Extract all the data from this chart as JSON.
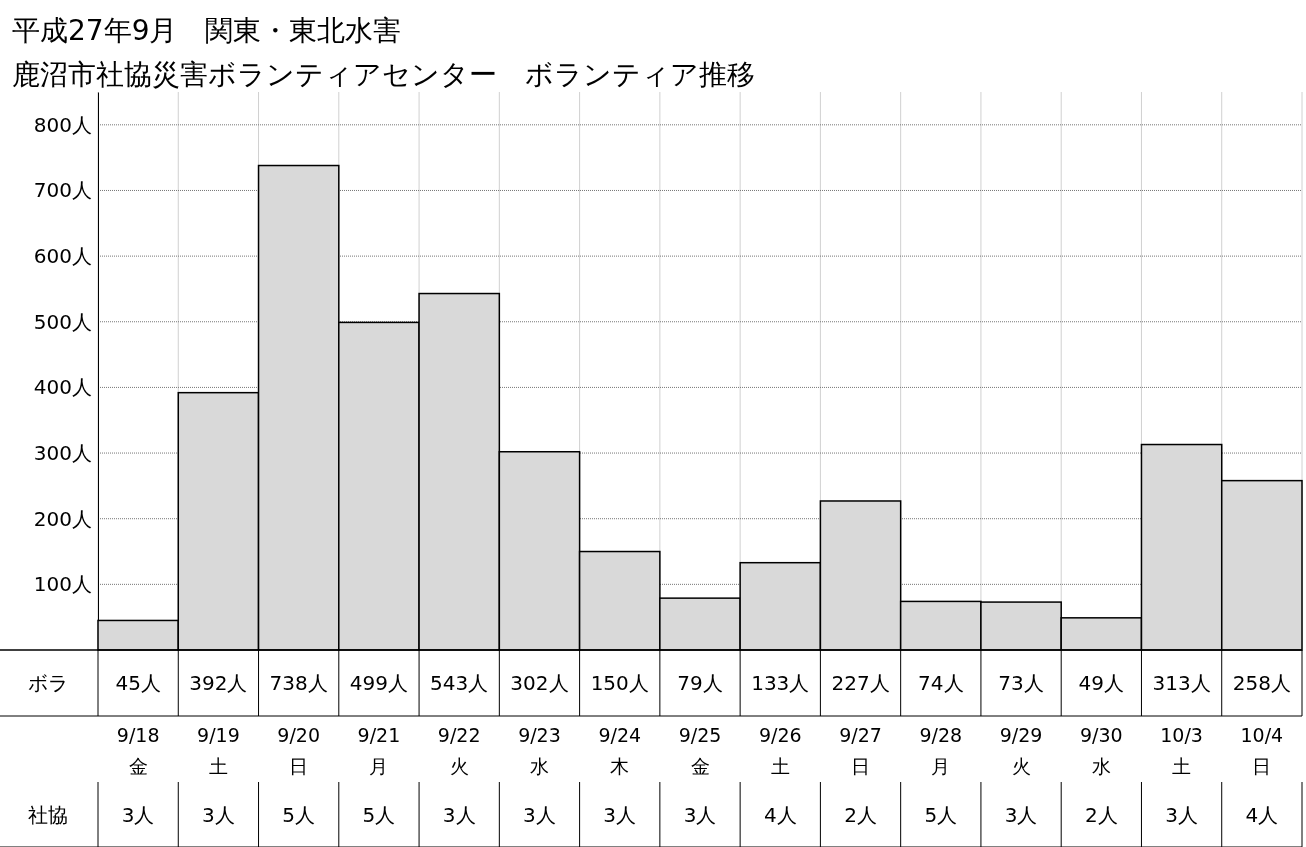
{
  "chart_data": {
    "type": "bar",
    "title": "平成27年9月　関東・東北水害",
    "subtitle": "鹿沼市社協災害ボランティアセンター　ボランティア推移",
    "categories": [
      "9/18\n金",
      "9/19\n土",
      "9/20\n日",
      "9/21\n月",
      "9/22\n火",
      "9/23\n水",
      "9/24\n木",
      "9/25\n金",
      "9/26\n土",
      "9/27\n日",
      "9/28\n月",
      "9/29\n火",
      "9/30\n水",
      "10/3\n土",
      "10/4\n日"
    ],
    "series": [
      {
        "name": "ボラ",
        "color": "#d9d9d9",
        "values": [
          45,
          392,
          738,
          499,
          543,
          302,
          150,
          79,
          133,
          227,
          74,
          73,
          49,
          313,
          258
        ],
        "value_labels": [
          "45人",
          "392人",
          "738人",
          "499人",
          "543人",
          "302人",
          "150人",
          "79人",
          "133人",
          "227人",
          "74人",
          "73人",
          "49人",
          "313人",
          "258人"
        ]
      }
    ],
    "annotations": [
      "社協",
      "3人",
      "3人",
      "5人",
      "5人",
      "3人",
      "3人",
      "3人",
      "3人",
      "4人",
      "2人",
      "5人",
      "3人",
      "2人",
      "3人",
      "4人"
    ],
    "ylim": [
      0,
      850
    ],
    "yticks": [
      {
        "value": 100,
        "label": "100人"
      },
      {
        "value": 200,
        "label": "200人"
      },
      {
        "value": 300,
        "label": "300人"
      },
      {
        "value": 400,
        "label": "400人"
      },
      {
        "value": 500,
        "label": "500人"
      },
      {
        "value": 600,
        "label": "600人"
      },
      {
        "value": 700,
        "label": "700人"
      },
      {
        "value": 800,
        "label": "800人"
      }
    ],
    "grid": true,
    "legend": false
  }
}
